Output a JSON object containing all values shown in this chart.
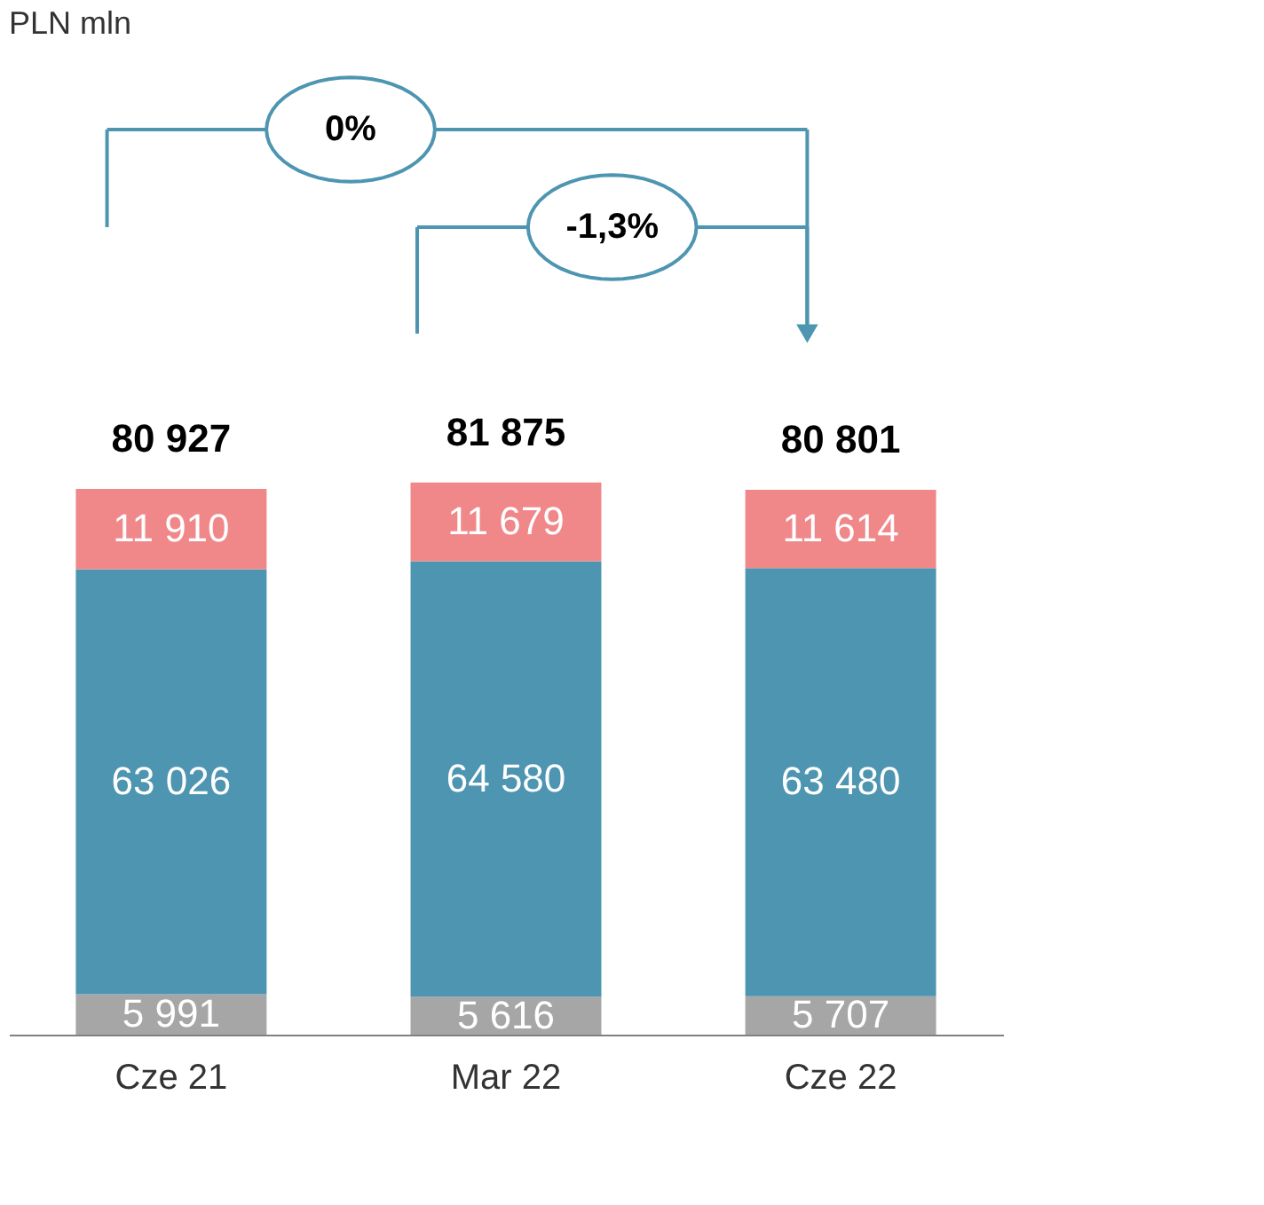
{
  "chart_data": {
    "type": "bar",
    "stacked": true,
    "categories": [
      "Cze 21",
      "Mar 22",
      "Cze 22"
    ],
    "series": [
      {
        "color": "#a6a6a6",
        "values": [
          5991,
          5616,
          5707
        ]
      },
      {
        "color": "#4e95b1",
        "values": [
          63026,
          64580,
          63480
        ]
      },
      {
        "color": "#f0888a",
        "values": [
          11910,
          11679,
          11614
        ]
      }
    ],
    "data_labels": true,
    "totals": [
      "80 927",
      "81 875",
      "80 801"
    ],
    "annotations": [
      "PLN mln",
      "0%",
      "-1,3%"
    ],
    "grid": false
  }
}
